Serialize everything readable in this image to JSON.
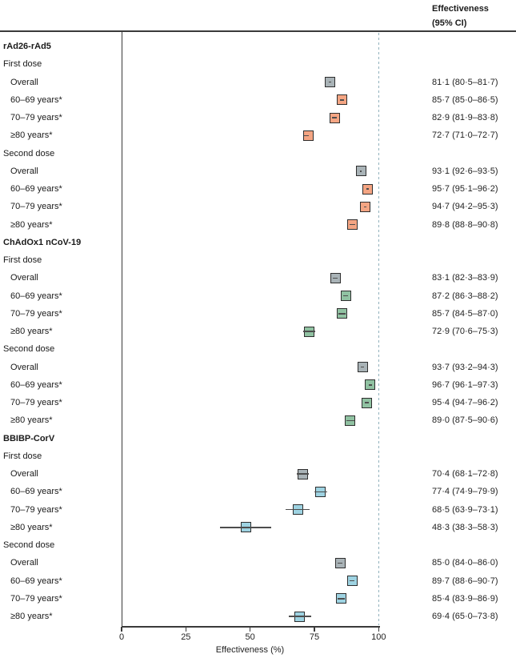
{
  "header": {
    "line1": "Effectiveness",
    "line2": "(95% CI)"
  },
  "axis": {
    "ticks": [
      0,
      25,
      50,
      75,
      100
    ],
    "xmin": 0,
    "xmax": 100,
    "xlabel": "Effectiveness (%)"
  },
  "colors": {
    "marker_overall": "#a9b3b7",
    "marker_border": "#2e2e2e",
    "whisker": "#4d4d4d",
    "reference_line": "#92b2bd",
    "axis_line": "#3a3a3a",
    "text": "#1a1a1a"
  },
  "chart_data": {
    "type": "forest",
    "title": "",
    "value_column_header": "Effectiveness (95% CI)",
    "xlabel": "Effectiveness (%)",
    "xlim": [
      0,
      100
    ],
    "reference_line_x": 100,
    "groups": [
      {
        "name": "rAd26-rAd5",
        "color": "#f4a583",
        "doses": [
          {
            "label": "First dose",
            "rows": [
              {
                "label": "Overall",
                "overall": true,
                "est": 81.1,
                "lo": 80.5,
                "hi": 81.7,
                "text": "81·1 (80·5–81·7)"
              },
              {
                "label": "60–69 years*",
                "overall": false,
                "est": 85.7,
                "lo": 85.0,
                "hi": 86.5,
                "text": "85·7 (85·0–86·5)"
              },
              {
                "label": "70–79 years*",
                "overall": false,
                "est": 82.9,
                "lo": 81.9,
                "hi": 83.8,
                "text": "82·9 (81·9–83·8)"
              },
              {
                "label": "≥80 years*",
                "overall": false,
                "est": 72.7,
                "lo": 71.0,
                "hi": 72.7,
                "text": "72·7 (71·0–72·7)"
              }
            ]
          },
          {
            "label": "Second dose",
            "rows": [
              {
                "label": "Overall",
                "overall": true,
                "est": 93.1,
                "lo": 92.6,
                "hi": 93.5,
                "text": "93·1 (92·6–93·5)"
              },
              {
                "label": "60–69 years*",
                "overall": false,
                "est": 95.7,
                "lo": 95.1,
                "hi": 96.2,
                "text": "95·7 (95·1–96·2)"
              },
              {
                "label": "70–79 years*",
                "overall": false,
                "est": 94.7,
                "lo": 94.2,
                "hi": 95.3,
                "text": "94·7 (94·2–95·3)"
              },
              {
                "label": "≥80 years*",
                "overall": false,
                "est": 89.8,
                "lo": 88.8,
                "hi": 90.8,
                "text": "89·8 (88·8–90·8)"
              }
            ]
          }
        ]
      },
      {
        "name": "ChAdOx1 nCoV-19",
        "color": "#90c2a2",
        "doses": [
          {
            "label": "First dose",
            "rows": [
              {
                "label": "Overall",
                "overall": true,
                "est": 83.1,
                "lo": 82.3,
                "hi": 83.9,
                "text": "83·1 (82·3–83·9)"
              },
              {
                "label": "60–69 years*",
                "overall": false,
                "est": 87.2,
                "lo": 86.3,
                "hi": 88.2,
                "text": "87·2 (86·3–88·2)"
              },
              {
                "label": "70–79 years*",
                "overall": false,
                "est": 85.7,
                "lo": 84.5,
                "hi": 87.0,
                "text": "85·7 (84·5–87·0)"
              },
              {
                "label": "≥80 years*",
                "overall": false,
                "est": 72.9,
                "lo": 70.6,
                "hi": 75.3,
                "text": "72·9 (70·6–75·3)"
              }
            ]
          },
          {
            "label": "Second dose",
            "rows": [
              {
                "label": "Overall",
                "overall": true,
                "est": 93.7,
                "lo": 93.2,
                "hi": 94.3,
                "text": "93·7 (93·2–94·3)"
              },
              {
                "label": "60–69 years*",
                "overall": false,
                "est": 96.7,
                "lo": 96.1,
                "hi": 97.3,
                "text": "96·7 (96·1–97·3)"
              },
              {
                "label": "70–79 years*",
                "overall": false,
                "est": 95.4,
                "lo": 94.7,
                "hi": 96.2,
                "text": "95·4 (94·7–96·2)"
              },
              {
                "label": "≥80 years*",
                "overall": false,
                "est": 89.0,
                "lo": 87.5,
                "hi": 90.6,
                "text": "89·0 (87·5–90·6)"
              }
            ]
          }
        ]
      },
      {
        "name": "BBIBP-CorV",
        "color": "#9ed3e2",
        "doses": [
          {
            "label": "First dose",
            "rows": [
              {
                "label": "Overall",
                "overall": true,
                "est": 70.4,
                "lo": 68.1,
                "hi": 72.8,
                "text": "70·4 (68·1–72·8)"
              },
              {
                "label": "60–69 years*",
                "overall": false,
                "est": 77.4,
                "lo": 74.9,
                "hi": 79.9,
                "text": "77·4 (74·9–79·9)"
              },
              {
                "label": "70–79 years*",
                "overall": false,
                "est": 68.5,
                "lo": 63.9,
                "hi": 73.1,
                "text": "68·5 (63·9–73·1)"
              },
              {
                "label": "≥80 years*",
                "overall": false,
                "est": 48.3,
                "lo": 38.3,
                "hi": 58.3,
                "text": "48·3 (38·3–58·3)"
              }
            ]
          },
          {
            "label": "Second dose",
            "rows": [
              {
                "label": "Overall",
                "overall": true,
                "est": 85.0,
                "lo": 84.0,
                "hi": 86.0,
                "text": "85·0 (84·0–86·0)"
              },
              {
                "label": "60–69 years*",
                "overall": false,
                "est": 89.7,
                "lo": 88.6,
                "hi": 90.7,
                "text": "89·7 (88·6–90·7)"
              },
              {
                "label": "70–79 years*",
                "overall": false,
                "est": 85.4,
                "lo": 83.9,
                "hi": 86.9,
                "text": "85·4 (83·9–86·9)"
              },
              {
                "label": "≥80 years*",
                "overall": false,
                "est": 69.4,
                "lo": 65.0,
                "hi": 73.8,
                "text": "69·4 (65·0–73·8)"
              }
            ]
          }
        ]
      }
    ]
  }
}
